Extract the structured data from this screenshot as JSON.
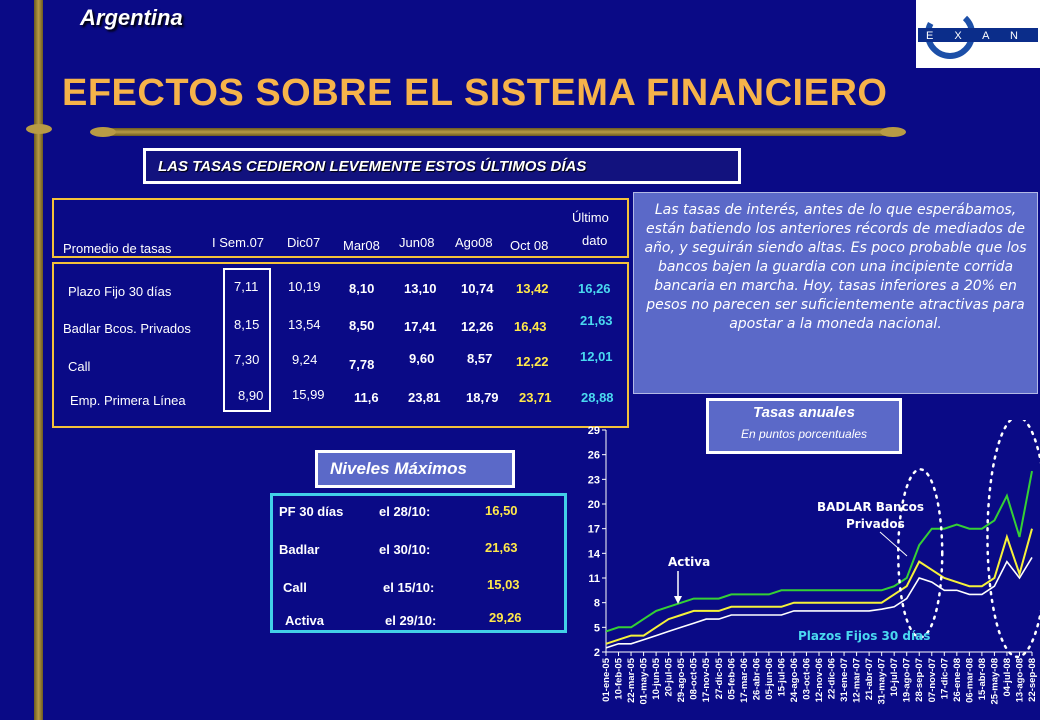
{
  "header": {
    "country": "Argentina",
    "title": "EFECTOS SOBRE EL SISTEMA FINANCIERO",
    "logo_text": "EXANTE"
  },
  "subtitle": "LAS TASAS CEDIERON LEVEMENTE ESTOS ÚLTIMOS DÍAS",
  "rates_table": {
    "row_header": "Promedio de tasas",
    "columns": [
      "I Sem.07",
      "Dic07",
      "Mar08",
      "Jun08",
      "Ago08",
      "Oct 08",
      "Último",
      "dato"
    ],
    "rows": [
      {
        "label": "Plazo Fijo 30 días",
        "values": [
          "7,11",
          "10,19",
          "8,10",
          "13,10",
          "10,74",
          "13,42",
          "16,26"
        ]
      },
      {
        "label": "Badlar Bcos. Privados",
        "values": [
          "8,15",
          "13,54",
          "8,50",
          "17,41",
          "12,26",
          "16,43",
          "21,63"
        ]
      },
      {
        "label": "Call",
        "values": [
          "7,30",
          "9,24",
          "7,78",
          "9,60",
          "8,57",
          "12,22",
          "12,01"
        ]
      },
      {
        "label": "Emp. Primera Línea",
        "values": [
          "8,90",
          "15,99",
          "11,6",
          "23,81",
          "18,79",
          "23,71",
          "28,88"
        ]
      }
    ]
  },
  "note": "Las tasas de interés, antes de lo que esperábamos, están batiendo los anteriores récords de mediados de año, y seguirán siendo altas. Es poco probable que los bancos bajen la guardia con una incipiente corrida bancaria en marcha. Hoy, tasas inferiores a 20% en pesos no parecen ser suficientemente atractivas para apostar a la moneda nacional.",
  "max_levels": {
    "title": "Niveles Máximos",
    "items": [
      {
        "name": "PF 30 días",
        "date": "el 28/10:",
        "value": "16,50"
      },
      {
        "name": "Badlar",
        "date": "el 30/10:",
        "value": "21,63"
      },
      {
        "name": "Call",
        "date": "el 15/10:",
        "value": "15,03"
      },
      {
        "name": "Activa",
        "date": "el 29/10:",
        "value": "29,26"
      }
    ]
  },
  "chart_panel": {
    "title": "Tasas anuales",
    "subtitle": "En puntos porcentuales"
  },
  "colors": {
    "background": "#0a0a86",
    "title": "#f6b34a",
    "gold": "#b89b45",
    "highlight": "#ffe84a",
    "cyan": "#4ad9f0",
    "green_series": "#35d035",
    "yellow_series": "#f6f23a",
    "white_series": "#ffffff"
  },
  "chart_data": {
    "type": "line",
    "title": "Tasas anuales",
    "subtitle": "En puntos porcentuales",
    "ylim": [
      2,
      29
    ],
    "yticks": [
      2,
      5,
      8,
      11,
      14,
      17,
      20,
      23,
      26,
      29
    ],
    "categories": [
      "01-ene-05",
      "10-feb-05",
      "22-mar-05",
      "01-may-05",
      "10-jun-05",
      "20-jul-05",
      "29-ago-05",
      "08-oct-05",
      "17-nov-05",
      "27-dic-05",
      "05-feb-06",
      "17-mar-06",
      "26-abr-06",
      "05-jun-06",
      "15-jul-06",
      "24-ago-06",
      "03-oct-06",
      "12-nov-06",
      "22-dic-06",
      "31-ene-07",
      "12-mar-07",
      "21-abr-07",
      "31-may-07",
      "10-jul-07",
      "19-ago-07",
      "28-sep-07",
      "07-nov-07",
      "17-dic-07",
      "26-ene-08",
      "06-mar-08",
      "15-abr-08",
      "25-may-08",
      "04-jul-08",
      "13-ago-08",
      "22-sep-08"
    ],
    "annotations": [
      "Activa",
      "BADLAR Bancos Privados",
      "Plazos Fijos 30 días"
    ],
    "series": [
      {
        "name": "Activa",
        "color": "#35d035",
        "values": [
          4.5,
          5,
          5,
          6,
          7,
          7.5,
          8,
          8.5,
          8.5,
          8.5,
          9,
          9,
          9,
          9,
          9.5,
          9.5,
          9.5,
          9.5,
          9.5,
          9.5,
          9.5,
          9.5,
          9.5,
          10,
          11,
          15,
          17,
          17,
          17.5,
          17,
          17,
          18,
          21,
          16,
          24
        ]
      },
      {
        "name": "BADLAR Bancos Privados",
        "color": "#f6f23a",
        "values": [
          3,
          3.5,
          4,
          4,
          5,
          6,
          6.5,
          7,
          7,
          7,
          7.5,
          7.5,
          7.5,
          7.5,
          7.5,
          8,
          8,
          8,
          8,
          8,
          8,
          8,
          8,
          9,
          10,
          13,
          12,
          11,
          10.5,
          10,
          10,
          11,
          16,
          11.5,
          17
        ]
      },
      {
        "name": "Plazos Fijos 30 días",
        "color": "#ffffff",
        "values": [
          2.5,
          3,
          3,
          3.5,
          4,
          4.5,
          5,
          5.5,
          6,
          6,
          6.5,
          6.5,
          6.5,
          6.5,
          6.5,
          7,
          7,
          7,
          7,
          7,
          7,
          7,
          7.2,
          7.5,
          8.5,
          11,
          10.5,
          9.5,
          9.5,
          9,
          9,
          10,
          13,
          11,
          13.5
        ]
      }
    ]
  }
}
